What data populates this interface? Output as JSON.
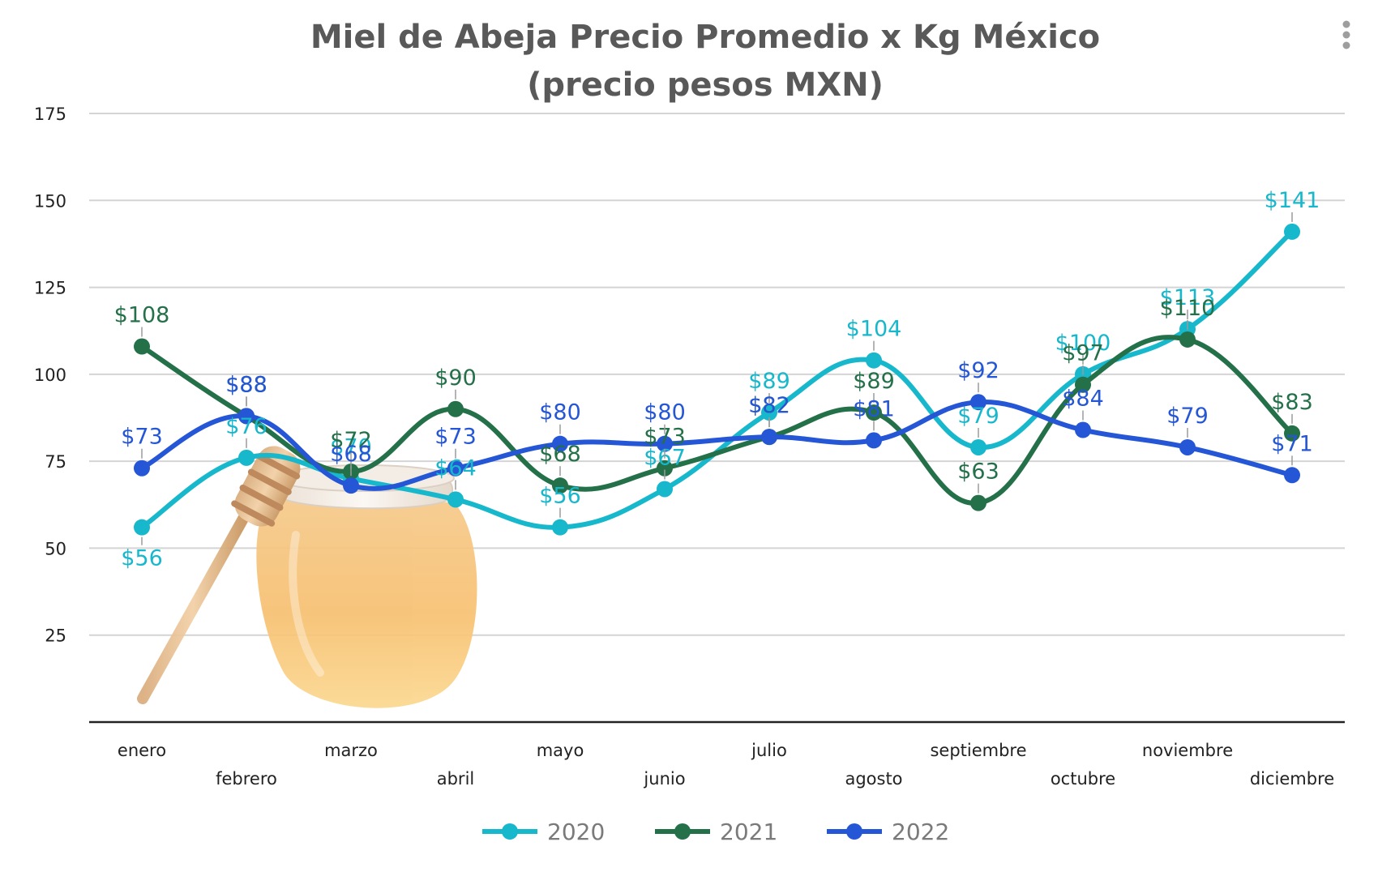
{
  "chart_data": {
    "type": "line",
    "title": "Miel de Abeja Precio Promedio x Kg México",
    "subtitle": "(precio pesos MXN)",
    "xlabel": "",
    "ylabel": "",
    "categories": [
      "enero",
      "febrero",
      "marzo",
      "abril",
      "mayo",
      "junio",
      "julio",
      "agosto",
      "septiembre",
      "octubre",
      "noviembre",
      "diciembre"
    ],
    "ylim": [
      0,
      175
    ],
    "yticks": [
      25,
      50,
      75,
      100,
      125,
      150,
      175
    ],
    "grid": true,
    "legend_position": "bottom-center",
    "smooth": true,
    "label_prefix": "$",
    "series": [
      {
        "name": "2020",
        "color": "#17B7CC",
        "values": [
          56,
          76,
          70,
          64,
          56,
          67,
          89,
          104,
          79,
          100,
          113,
          141
        ]
      },
      {
        "name": "2021",
        "color": "#237049",
        "values": [
          108,
          88,
          72,
          90,
          68,
          73,
          82,
          89,
          63,
          97,
          110,
          83
        ]
      },
      {
        "name": "2022",
        "color": "#2456D6",
        "values": [
          73,
          88,
          68,
          73,
          80,
          80,
          82,
          81,
          92,
          84,
          79,
          71
        ]
      }
    ]
  },
  "menu": {
    "icon": "kebab-menu-icon"
  },
  "decoration": {
    "icon": "honey-jar-illustration"
  }
}
